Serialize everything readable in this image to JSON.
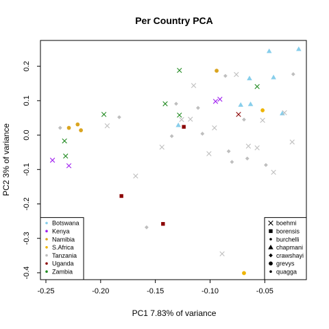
{
  "chart_data": {
    "type": "scatter",
    "title": "Per Country PCA",
    "xlabel": "PC1 7.83% of variance",
    "ylabel": "PC2 3% of variance",
    "xlim": [
      -0.255,
      -0.012
    ],
    "ylim": [
      -0.42,
      0.275
    ],
    "x_ticks": [
      -0.25,
      -0.2,
      -0.15,
      -0.1,
      -0.05
    ],
    "x_tick_labels": [
      "-0.25",
      "-0.20",
      "-0.15",
      "-0.10",
      "-0.05"
    ],
    "y_ticks": [
      -0.4,
      -0.3,
      -0.2,
      -0.1,
      0.0,
      0.1,
      0.2
    ],
    "y_tick_labels": [
      "-0.4",
      "-0.3",
      "-0.2",
      "-0.1",
      "0.0",
      "0.1",
      "0.2"
    ],
    "grid": false,
    "country_legend": {
      "placement": "bottom-left",
      "entries": [
        {
          "label": "Botswana",
          "color": "#87CEEB"
        },
        {
          "label": "Kenya",
          "color": "#A020F0"
        },
        {
          "label": "Namibia",
          "color": "#DAA520"
        },
        {
          "label": "S.Africa",
          "color": "#EEB400"
        },
        {
          "label": "Tanzania",
          "color": "#BEBEBE"
        },
        {
          "label": "Uganda",
          "color": "#8B0000"
        },
        {
          "label": "Zambia",
          "color": "#228B22"
        }
      ]
    },
    "species_legend": {
      "placement": "bottom-right",
      "entries": [
        {
          "label": "boehmi",
          "shape": "cross"
        },
        {
          "label": "borensis",
          "shape": "square"
        },
        {
          "label": "burchelli",
          "shape": "dot"
        },
        {
          "label": "chapmani",
          "shape": "triangle"
        },
        {
          "label": "crawshayi",
          "shape": "diamond"
        },
        {
          "label": "grevys",
          "shape": "circle"
        },
        {
          "label": "quagga",
          "shape": "dot"
        }
      ]
    },
    "points": [
      {
        "x": -0.244,
        "y": -0.073,
        "country": "Kenya",
        "species": "boehmi"
      },
      {
        "x": -0.229,
        "y": -0.089,
        "country": "Kenya",
        "species": "boehmi"
      },
      {
        "x": -0.095,
        "y": 0.098,
        "country": "Kenya",
        "species": "boehmi"
      },
      {
        "x": -0.091,
        "y": 0.104,
        "country": "Kenya",
        "species": "boehmi"
      },
      {
        "x": -0.233,
        "y": -0.017,
        "country": "Zambia",
        "species": "boehmi"
      },
      {
        "x": -0.232,
        "y": -0.061,
        "country": "Zambia",
        "species": "boehmi"
      },
      {
        "x": -0.197,
        "y": 0.06,
        "country": "Zambia",
        "species": "boehmi"
      },
      {
        "x": -0.141,
        "y": 0.091,
        "country": "Zambia",
        "species": "boehmi"
      },
      {
        "x": -0.128,
        "y": 0.188,
        "country": "Zambia",
        "species": "boehmi"
      },
      {
        "x": -0.128,
        "y": 0.058,
        "country": "Zambia",
        "species": "boehmi"
      },
      {
        "x": -0.057,
        "y": 0.141,
        "country": "Zambia",
        "species": "boehmi"
      },
      {
        "x": -0.229,
        "y": 0.021,
        "country": "Namibia",
        "species": "grevys"
      },
      {
        "x": -0.221,
        "y": 0.031,
        "country": "Namibia",
        "species": "grevys"
      },
      {
        "x": -0.218,
        "y": 0.014,
        "country": "Namibia",
        "species": "grevys"
      },
      {
        "x": -0.094,
        "y": 0.187,
        "country": "Namibia",
        "species": "grevys"
      },
      {
        "x": -0.052,
        "y": 0.072,
        "country": "S.Africa",
        "species": "grevys"
      },
      {
        "x": -0.069,
        "y": -0.401,
        "country": "S.Africa",
        "species": "grevys"
      },
      {
        "x": -0.181,
        "y": -0.177,
        "country": "Uganda",
        "species": "borensis"
      },
      {
        "x": -0.143,
        "y": -0.258,
        "country": "Uganda",
        "species": "borensis"
      },
      {
        "x": -0.124,
        "y": 0.024,
        "country": "Uganda",
        "species": "borensis"
      },
      {
        "x": -0.074,
        "y": 0.06,
        "country": "Uganda",
        "species": "boehmi"
      },
      {
        "x": -0.129,
        "y": 0.029,
        "country": "Botswana",
        "species": "chapmani"
      },
      {
        "x": -0.072,
        "y": 0.088,
        "country": "Botswana",
        "species": "chapmani"
      },
      {
        "x": -0.064,
        "y": 0.165,
        "country": "Botswana",
        "species": "chapmani"
      },
      {
        "x": -0.063,
        "y": 0.09,
        "country": "Botswana",
        "species": "chapmani"
      },
      {
        "x": -0.046,
        "y": 0.244,
        "country": "Botswana",
        "species": "chapmani"
      },
      {
        "x": -0.042,
        "y": 0.168,
        "country": "Botswana",
        "species": "chapmani"
      },
      {
        "x": -0.034,
        "y": 0.063,
        "country": "Botswana",
        "species": "chapmani"
      },
      {
        "x": -0.019,
        "y": 0.25,
        "country": "Botswana",
        "species": "chapmani"
      },
      {
        "x": -0.237,
        "y": 0.021,
        "country": "Tanzania",
        "species": "crawshayi"
      },
      {
        "x": -0.194,
        "y": 0.027,
        "country": "Tanzania",
        "species": "boehmi"
      },
      {
        "x": -0.183,
        "y": 0.052,
        "country": "Tanzania",
        "species": "crawshayi"
      },
      {
        "x": -0.168,
        "y": -0.119,
        "country": "Tanzania",
        "species": "boehmi"
      },
      {
        "x": -0.158,
        "y": -0.268,
        "country": "Tanzania",
        "species": "crawshayi"
      },
      {
        "x": -0.144,
        "y": -0.035,
        "country": "Tanzania",
        "species": "boehmi"
      },
      {
        "x": -0.135,
        "y": -0.003,
        "country": "Tanzania",
        "species": "crawshayi"
      },
      {
        "x": -0.131,
        "y": 0.091,
        "country": "Tanzania",
        "species": "crawshayi"
      },
      {
        "x": -0.126,
        "y": 0.045,
        "country": "Tanzania",
        "species": "boehmi"
      },
      {
        "x": -0.118,
        "y": 0.046,
        "country": "Tanzania",
        "species": "boehmi"
      },
      {
        "x": -0.115,
        "y": 0.144,
        "country": "Tanzania",
        "species": "boehmi"
      },
      {
        "x": -0.111,
        "y": 0.079,
        "country": "Tanzania",
        "species": "crawshayi"
      },
      {
        "x": -0.107,
        "y": 0.004,
        "country": "Tanzania",
        "species": "crawshayi"
      },
      {
        "x": -0.101,
        "y": -0.054,
        "country": "Tanzania",
        "species": "boehmi"
      },
      {
        "x": -0.096,
        "y": 0.021,
        "country": "Tanzania",
        "species": "boehmi"
      },
      {
        "x": -0.089,
        "y": -0.345,
        "country": "Tanzania",
        "species": "boehmi"
      },
      {
        "x": -0.086,
        "y": 0.172,
        "country": "Tanzania",
        "species": "crawshayi"
      },
      {
        "x": -0.083,
        "y": -0.047,
        "country": "Tanzania",
        "species": "crawshayi"
      },
      {
        "x": -0.08,
        "y": -0.078,
        "country": "Tanzania",
        "species": "crawshayi"
      },
      {
        "x": -0.076,
        "y": 0.176,
        "country": "Tanzania",
        "species": "boehmi"
      },
      {
        "x": -0.069,
        "y": 0.045,
        "country": "Tanzania",
        "species": "crawshayi"
      },
      {
        "x": -0.066,
        "y": -0.068,
        "country": "Tanzania",
        "species": "crawshayi"
      },
      {
        "x": -0.065,
        "y": -0.032,
        "country": "Tanzania",
        "species": "boehmi"
      },
      {
        "x": -0.057,
        "y": -0.037,
        "country": "Tanzania",
        "species": "boehmi"
      },
      {
        "x": -0.052,
        "y": 0.043,
        "country": "Tanzania",
        "species": "boehmi"
      },
      {
        "x": -0.049,
        "y": -0.087,
        "country": "Tanzania",
        "species": "crawshayi"
      },
      {
        "x": -0.042,
        "y": -0.108,
        "country": "Tanzania",
        "species": "boehmi"
      },
      {
        "x": -0.032,
        "y": 0.065,
        "country": "Tanzania",
        "species": "boehmi"
      },
      {
        "x": -0.025,
        "y": -0.02,
        "country": "Tanzania",
        "species": "boehmi"
      },
      {
        "x": -0.024,
        "y": 0.177,
        "country": "Tanzania",
        "species": "crawshayi"
      }
    ]
  }
}
